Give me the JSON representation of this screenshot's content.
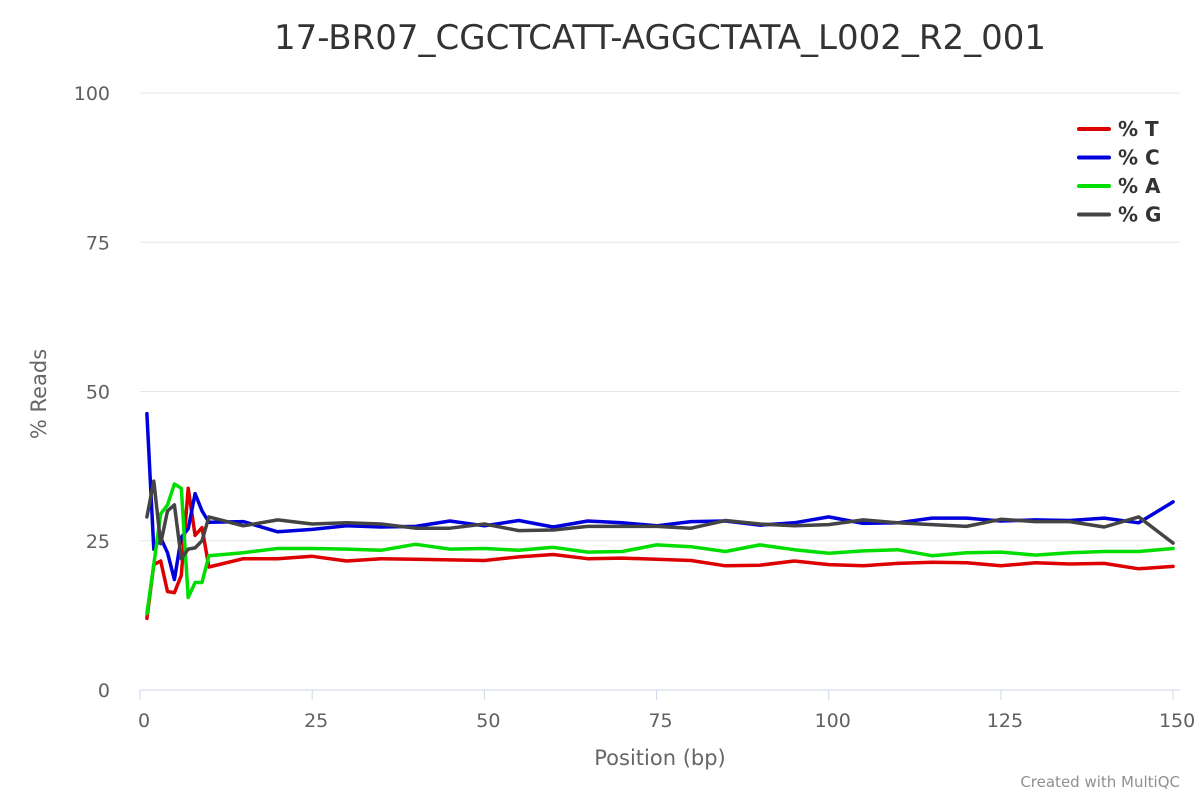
{
  "chart_data": {
    "type": "line",
    "title": "17-BR07_CGCTCATT-AGGCTATA_L002_R2_001",
    "xlabel": "Position (bp)",
    "ylabel": "% Reads",
    "xlim": [
      0,
      151
    ],
    "ylim": [
      0,
      100
    ],
    "x_ticks": [
      0,
      25,
      50,
      75,
      100,
      125,
      150
    ],
    "y_ticks": [
      0,
      25,
      50,
      75,
      100
    ],
    "grid": true,
    "legend_position": "top-right",
    "credit": "Created with MultiQC",
    "x": [
      1,
      2,
      3,
      4,
      5,
      6,
      7,
      8,
      9,
      10,
      15,
      20,
      25,
      30,
      35,
      40,
      45,
      50,
      55,
      60,
      65,
      70,
      75,
      80,
      85,
      90,
      95,
      100,
      105,
      110,
      115,
      120,
      125,
      130,
      135,
      140,
      145,
      150
    ],
    "series": [
      {
        "name": "% T",
        "color": "#dd0000",
        "values": [
          12.0,
          21.0,
          21.6,
          16.5,
          16.3,
          19.2,
          33.8,
          25.9,
          27.2,
          20.6,
          22.0,
          22.0,
          22.4,
          21.6,
          22.0,
          21.9,
          21.8,
          21.7,
          22.3,
          22.7,
          22.0,
          22.1,
          21.9,
          21.7,
          20.8,
          20.9,
          21.6,
          21.0,
          20.8,
          21.2,
          21.4,
          21.3,
          20.8,
          21.3,
          21.1,
          21.2,
          20.3,
          20.7
        ]
      },
      {
        "name": "% C",
        "color": "#0000dd",
        "values": [
          46.3,
          23.6,
          25.5,
          23.0,
          18.5,
          25.6,
          27.0,
          32.9,
          30.0,
          28.1,
          28.2,
          26.5,
          26.9,
          27.5,
          27.3,
          27.4,
          28.3,
          27.5,
          28.4,
          27.3,
          28.3,
          28.0,
          27.5,
          28.2,
          28.3,
          27.6,
          28.0,
          29.0,
          27.9,
          28.0,
          28.8,
          28.8,
          28.3,
          28.5,
          28.4,
          28.8,
          28.0,
          31.5
        ]
      },
      {
        "name": "% A",
        "color": "#00dd00",
        "values": [
          12.8,
          21.0,
          29.5,
          31.0,
          34.5,
          33.8,
          15.5,
          18.0,
          18.0,
          22.5,
          23.0,
          23.7,
          23.7,
          23.6,
          23.4,
          24.4,
          23.6,
          23.7,
          23.4,
          23.9,
          23.1,
          23.2,
          24.3,
          24.0,
          23.2,
          24.3,
          23.5,
          22.9,
          23.3,
          23.5,
          22.5,
          23.0,
          23.1,
          22.6,
          23.0,
          23.2,
          23.2,
          23.7
        ]
      },
      {
        "name": "% G",
        "color": "#444444",
        "values": [
          29.0,
          35.0,
          24.5,
          30.0,
          31.0,
          22.0,
          23.6,
          23.8,
          25.0,
          29.0,
          27.5,
          28.5,
          27.8,
          28.0,
          27.8,
          27.1,
          27.1,
          27.8,
          26.7,
          26.8,
          27.4,
          27.4,
          27.4,
          27.1,
          28.4,
          27.8,
          27.5,
          27.7,
          28.5,
          28.0,
          27.7,
          27.4,
          28.6,
          28.2,
          28.2,
          27.3,
          29.0,
          24.6
        ]
      }
    ]
  }
}
